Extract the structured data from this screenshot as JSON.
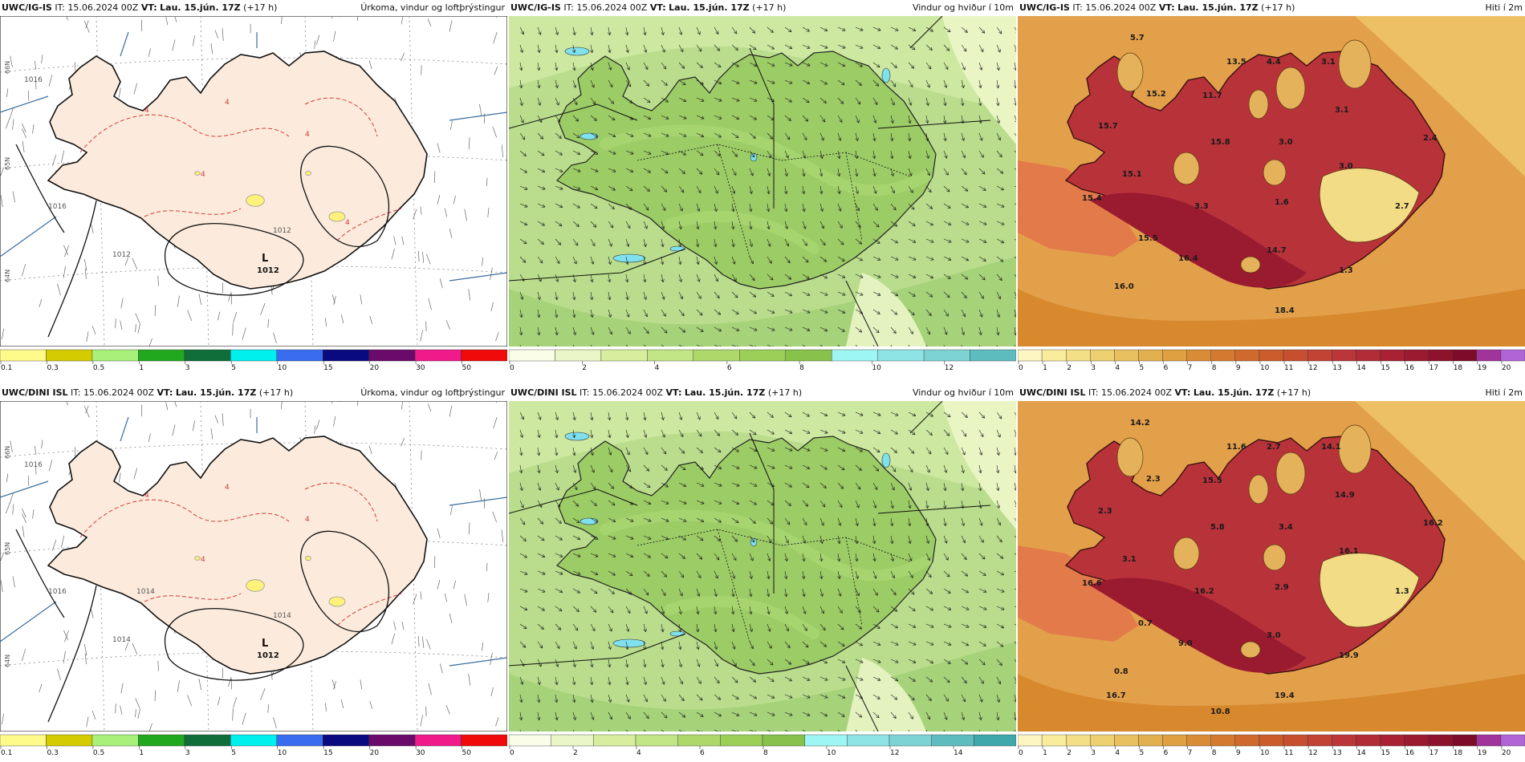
{
  "panels": [
    {
      "id": "igis-precip",
      "model": "UWC/IG-IS",
      "init_label": "IT:",
      "init_time": "15.06.2024 00Z",
      "valid_label": "VT:",
      "valid_time": "Lau. 15.jún. 17Z",
      "lead": "(+17 h)",
      "product": "Úrkoma, vindur og loftþrýstingur",
      "type": "precip",
      "pressure_labels": [
        "1016",
        "1016",
        "1012",
        "1012"
      ],
      "low_label": "L",
      "low_value": "1012",
      "contour_labels": [
        "4",
        "4",
        "4",
        "4",
        "4"
      ],
      "lat_labels": [
        "66N",
        "65N",
        "64N"
      ],
      "scale": {
        "ticks": [
          "0.1",
          "0.3",
          "0.5",
          "1",
          "3",
          "5",
          "10",
          "15",
          "20",
          "30",
          "50"
        ],
        "colors": [
          "#fffb8a",
          "#d4cc00",
          "#a8f07a",
          "#22a81e",
          "#0f6e3a",
          "#00f0ee",
          "#3a6cf0",
          "#0a0a80",
          "#6a0a6a",
          "#f01a8a",
          "#f00a0a"
        ]
      }
    },
    {
      "id": "igis-wind",
      "model": "UWC/IG-IS",
      "init_label": "IT:",
      "init_time": "15.06.2024 00Z",
      "valid_label": "VT:",
      "valid_time": "Lau. 15.jún. 17Z",
      "lead": "(+17 h)",
      "product": "Vindur og hviður í 10m",
      "type": "wind",
      "scale": {
        "ticks": [
          "0",
          "",
          "2",
          "",
          "4",
          "",
          "6",
          "",
          "8",
          "",
          "10",
          "",
          "12",
          ""
        ],
        "colors": [
          "#fafde8",
          "#eaf6c8",
          "#d6ee9e",
          "#c2e585",
          "#aed86a",
          "#9bcf58",
          "#88c24a",
          "#9ef6f2",
          "#8ee4e4",
          "#7dd2d4",
          "#5cbcbe"
        ]
      }
    },
    {
      "id": "igis-temp",
      "model": "UWC/IG-IS",
      "init_label": "IT:",
      "init_time": "15.06.2024 00Z",
      "valid_label": "VT:",
      "valid_time": "Lau. 15.jún. 17Z",
      "lead": "(+17 h)",
      "product": "Hiti í 2m",
      "type": "temp",
      "temp_labels": [
        "5.7",
        "13.5",
        "4.4",
        "3.1",
        "15.2",
        "11.7",
        "3.1",
        "15.7",
        "15.8",
        "3.0",
        "2.4",
        "15.1",
        "3.0",
        "15.4",
        "3.3",
        "1.6",
        "2.7",
        "15.5",
        "14.7",
        "16.4",
        "1.3",
        "16.0",
        "18.4"
      ],
      "scale": {
        "ticks": [
          "0",
          "1",
          "2",
          "3",
          "4",
          "5",
          "6",
          "7",
          "8",
          "9",
          "10",
          "11",
          "12",
          "13",
          "14",
          "15",
          "16",
          "17",
          "18",
          "19",
          "20"
        ],
        "colors": [
          "#fdf6c2",
          "#f9ec9c",
          "#f3df85",
          "#edd070",
          "#e8c060",
          "#e3b050",
          "#dfa040",
          "#d98c36",
          "#d47a30",
          "#d06a2c",
          "#cc5c2c",
          "#c84e30",
          "#c24234",
          "#bb3638",
          "#b22c38",
          "#a82234",
          "#9c1a30",
          "#8e122c",
          "#7e0c28",
          "#a0349a",
          "#b064d6"
        ]
      }
    },
    {
      "id": "dini-precip",
      "model": "UWC/DINI ISL",
      "init_label": "IT:",
      "init_time": "15.06.2024 00Z",
      "valid_label": "VT:",
      "valid_time": "Lau. 15.jún. 17Z",
      "lead": "(+17 h)",
      "product": "Úrkoma, vindur og loftþrýstingur",
      "type": "precip",
      "pressure_labels": [
        "1016",
        "1016",
        "1014",
        "1014",
        "1014"
      ],
      "low_label": "L",
      "low_value": "1012",
      "contour_labels": [
        "4",
        "4",
        "4",
        "4"
      ],
      "lat_labels": [
        "66N",
        "65N",
        "64N"
      ],
      "scale": {
        "ticks": [
          "0.1",
          "0.3",
          "0.5",
          "1",
          "3",
          "5",
          "10",
          "15",
          "20",
          "30",
          "50"
        ],
        "colors": [
          "#fffb8a",
          "#d4cc00",
          "#a8f07a",
          "#22a81e",
          "#0f6e3a",
          "#00f0ee",
          "#3a6cf0",
          "#0a0a80",
          "#6a0a6a",
          "#f01a8a",
          "#f00a0a"
        ]
      }
    },
    {
      "id": "dini-wind",
      "model": "UWC/DINI ISL",
      "init_label": "IT:",
      "init_time": "15.06.2024 00Z",
      "valid_label": "VT:",
      "valid_time": "Lau. 15.jún. 17Z",
      "lead": "(+17 h)",
      "product": "Vindur og hviður í 10m",
      "type": "wind",
      "scale": {
        "ticks": [
          "0",
          "",
          "2",
          "",
          "4",
          "",
          "6",
          "",
          "8",
          "",
          "10",
          "",
          "12",
          "",
          "14",
          ""
        ],
        "colors": [
          "#fafde8",
          "#eaf6c8",
          "#d6ee9e",
          "#c2e585",
          "#aed86a",
          "#9bcf58",
          "#88c24a",
          "#9ef6f2",
          "#8ee4e4",
          "#7dd2d4",
          "#5cbcbe",
          "#3ea8aa"
        ]
      }
    },
    {
      "id": "dini-temp",
      "model": "UWC/DINI ISL",
      "init_label": "IT:",
      "init_time": "15.06.2024 00Z",
      "valid_label": "VT:",
      "valid_time": "Lau. 15.jún. 17Z",
      "lead": "(+17 h)",
      "product": "Hiti í 2m",
      "type": "temp",
      "temp_labels": [
        "14.2",
        "11.6",
        "2.7",
        "14.1",
        "2.3",
        "15.5",
        "14.9",
        "2.3",
        "5.8",
        "3.4",
        "16.2",
        "3.1",
        "16.1",
        "16.6",
        "16.2",
        "2.9",
        "1.3",
        "0.7",
        "3.0",
        "9.0",
        "19.9",
        "0.8",
        "19.4",
        "16.7",
        "10.8"
      ],
      "scale": {
        "ticks": [
          "0",
          "1",
          "2",
          "3",
          "4",
          "5",
          "6",
          "7",
          "8",
          "9",
          "10",
          "11",
          "12",
          "13",
          "14",
          "15",
          "16",
          "17",
          "18",
          "19",
          "20"
        ],
        "colors": [
          "#fdf6c2",
          "#f9ec9c",
          "#f3df85",
          "#edd070",
          "#e8c060",
          "#e3b050",
          "#dfa040",
          "#d98c36",
          "#d47a30",
          "#d06a2c",
          "#cc5c2c",
          "#c84e30",
          "#c24234",
          "#bb3638",
          "#b22c38",
          "#a82234",
          "#9c1a30",
          "#8e122c",
          "#7e0c28",
          "#a0349a",
          "#b064d6"
        ]
      }
    }
  ]
}
